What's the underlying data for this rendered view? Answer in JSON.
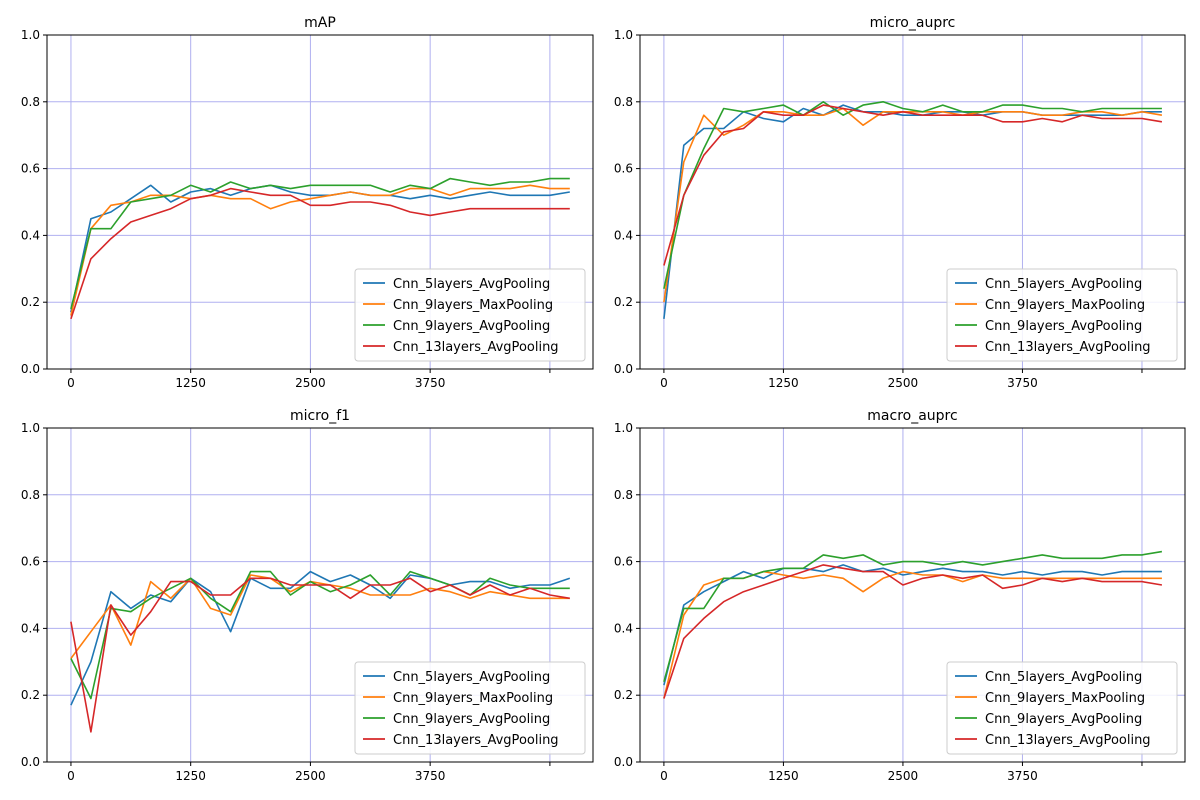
{
  "chart_data": [
    {
      "type": "line",
      "title": "mAP",
      "x": [
        0,
        208,
        417,
        625,
        833,
        1042,
        1250,
        1458,
        1667,
        1875,
        2083,
        2292,
        2500,
        2708,
        2917,
        3125,
        3333,
        3542,
        3750,
        3958,
        4167,
        4375,
        4583,
        4792,
        5000,
        5208
      ],
      "xticks": [
        0,
        1250,
        2500,
        3750,
        5000
      ],
      "xtick_labels": [
        "0",
        "1250",
        "2500",
        "3750",
        ""
      ],
      "xlim": [
        -250,
        5450
      ],
      "ylim": [
        0,
        1
      ],
      "yticks": [
        0,
        0.2,
        0.4,
        0.6,
        0.8,
        1.0
      ],
      "ytick_labels": [
        "0.0",
        "0.2",
        "0.4",
        "0.6",
        "0.8",
        "1.0"
      ],
      "grid": true,
      "legend": "lower-right",
      "series": [
        {
          "name": "Cnn_5layers_AvgPooling",
          "color": "#1f77b4",
          "values": [
            0.17,
            0.45,
            0.47,
            0.51,
            0.55,
            0.5,
            0.53,
            0.54,
            0.52,
            0.54,
            0.55,
            0.53,
            0.52,
            0.52,
            0.53,
            0.52,
            0.52,
            0.51,
            0.52,
            0.51,
            0.52,
            0.53,
            0.52,
            0.52,
            0.52,
            0.53
          ]
        },
        {
          "name": "Cnn_9layers_MaxPooling",
          "color": "#ff7f0e",
          "values": [
            0.16,
            0.42,
            0.49,
            0.5,
            0.52,
            0.52,
            0.51,
            0.52,
            0.51,
            0.51,
            0.48,
            0.5,
            0.51,
            0.52,
            0.53,
            0.52,
            0.52,
            0.54,
            0.54,
            0.52,
            0.54,
            0.54,
            0.54,
            0.55,
            0.54,
            0.54
          ]
        },
        {
          "name": "Cnn_9layers_AvgPooling",
          "color": "#2ca02c",
          "values": [
            0.18,
            0.42,
            0.42,
            0.5,
            0.51,
            0.52,
            0.55,
            0.53,
            0.56,
            0.54,
            0.55,
            0.54,
            0.55,
            0.55,
            0.55,
            0.55,
            0.53,
            0.55,
            0.54,
            0.57,
            0.56,
            0.55,
            0.56,
            0.56,
            0.57,
            0.57
          ]
        },
        {
          "name": "Cnn_13layers_AvgPooling",
          "color": "#d62728",
          "values": [
            0.15,
            0.33,
            0.39,
            0.44,
            0.46,
            0.48,
            0.51,
            0.52,
            0.54,
            0.53,
            0.52,
            0.52,
            0.49,
            0.49,
            0.5,
            0.5,
            0.49,
            0.47,
            0.46,
            0.47,
            0.48,
            0.48,
            0.48,
            0.48,
            0.48,
            0.48
          ]
        }
      ]
    },
    {
      "type": "line",
      "title": "micro_auprc",
      "x": [
        0,
        208,
        417,
        625,
        833,
        1042,
        1250,
        1458,
        1667,
        1875,
        2083,
        2292,
        2500,
        2708,
        2917,
        3125,
        3333,
        3542,
        3750,
        3958,
        4167,
        4375,
        4583,
        4792,
        5000,
        5208
      ],
      "xticks": [
        0,
        1250,
        2500,
        3750,
        5000
      ],
      "xtick_labels": [
        "0",
        "1250",
        "2500",
        "3750",
        ""
      ],
      "xlim": [
        -250,
        5450
      ],
      "ylim": [
        0,
        1
      ],
      "yticks": [
        0,
        0.2,
        0.4,
        0.6,
        0.8,
        1.0
      ],
      "ytick_labels": [
        "0.0",
        "0.2",
        "0.4",
        "0.6",
        "0.8",
        "1.0"
      ],
      "grid": true,
      "legend": "lower-right",
      "series": [
        {
          "name": "Cnn_5layers_AvgPooling",
          "color": "#1f77b4",
          "values": [
            0.15,
            0.67,
            0.72,
            0.72,
            0.77,
            0.75,
            0.74,
            0.78,
            0.76,
            0.79,
            0.77,
            0.77,
            0.76,
            0.76,
            0.77,
            0.77,
            0.76,
            0.77,
            0.77,
            0.76,
            0.76,
            0.76,
            0.76,
            0.76,
            0.77,
            0.77
          ]
        },
        {
          "name": "Cnn_9layers_MaxPooling",
          "color": "#ff7f0e",
          "values": [
            0.2,
            0.62,
            0.76,
            0.7,
            0.73,
            0.77,
            0.77,
            0.76,
            0.76,
            0.78,
            0.73,
            0.77,
            0.77,
            0.77,
            0.77,
            0.76,
            0.77,
            0.77,
            0.77,
            0.76,
            0.76,
            0.77,
            0.77,
            0.76,
            0.77,
            0.76
          ]
        },
        {
          "name": "Cnn_9layers_AvgPooling",
          "color": "#2ca02c",
          "values": [
            0.24,
            0.52,
            0.66,
            0.78,
            0.77,
            0.78,
            0.79,
            0.76,
            0.8,
            0.76,
            0.79,
            0.8,
            0.78,
            0.77,
            0.79,
            0.77,
            0.77,
            0.79,
            0.79,
            0.78,
            0.78,
            0.77,
            0.78,
            0.78,
            0.78,
            0.78
          ]
        },
        {
          "name": "Cnn_13layers_AvgPooling",
          "color": "#d62728",
          "values": [
            0.31,
            0.52,
            0.64,
            0.71,
            0.72,
            0.77,
            0.76,
            0.76,
            0.79,
            0.78,
            0.77,
            0.76,
            0.77,
            0.76,
            0.76,
            0.76,
            0.76,
            0.74,
            0.74,
            0.75,
            0.74,
            0.76,
            0.75,
            0.75,
            0.75,
            0.74
          ]
        }
      ]
    },
    {
      "type": "line",
      "title": "micro_f1",
      "x": [
        0,
        208,
        417,
        625,
        833,
        1042,
        1250,
        1458,
        1667,
        1875,
        2083,
        2292,
        2500,
        2708,
        2917,
        3125,
        3333,
        3542,
        3750,
        3958,
        4167,
        4375,
        4583,
        4792,
        5000,
        5208
      ],
      "xticks": [
        0,
        1250,
        2500,
        3750,
        5000
      ],
      "xtick_labels": [
        "0",
        "1250",
        "2500",
        "3750",
        ""
      ],
      "xlim": [
        -250,
        5450
      ],
      "ylim": [
        0,
        1
      ],
      "yticks": [
        0,
        0.2,
        0.4,
        0.6,
        0.8,
        1.0
      ],
      "ytick_labels": [
        "0.0",
        "0.2",
        "0.4",
        "0.6",
        "0.8",
        "1.0"
      ],
      "grid": true,
      "legend": "lower-right",
      "series": [
        {
          "name": "Cnn_5layers_AvgPooling",
          "color": "#1f77b4",
          "values": [
            0.17,
            0.3,
            0.51,
            0.46,
            0.5,
            0.48,
            0.55,
            0.51,
            0.39,
            0.55,
            0.52,
            0.52,
            0.57,
            0.54,
            0.56,
            0.53,
            0.49,
            0.56,
            0.55,
            0.53,
            0.54,
            0.54,
            0.52,
            0.53,
            0.53,
            0.55
          ]
        },
        {
          "name": "Cnn_9layers_MaxPooling",
          "color": "#ff7f0e",
          "values": [
            0.31,
            0.39,
            0.47,
            0.35,
            0.54,
            0.49,
            0.55,
            0.46,
            0.44,
            0.56,
            0.55,
            0.51,
            0.54,
            0.53,
            0.52,
            0.5,
            0.5,
            0.5,
            0.52,
            0.51,
            0.49,
            0.51,
            0.5,
            0.49,
            0.49,
            0.49
          ]
        },
        {
          "name": "Cnn_9layers_AvgPooling",
          "color": "#2ca02c",
          "values": [
            0.31,
            0.19,
            0.46,
            0.45,
            0.49,
            0.52,
            0.55,
            0.49,
            0.45,
            0.57,
            0.57,
            0.5,
            0.54,
            0.51,
            0.53,
            0.56,
            0.5,
            0.57,
            0.55,
            0.53,
            0.5,
            0.55,
            0.53,
            0.52,
            0.52,
            0.52
          ]
        },
        {
          "name": "Cnn_13layers_AvgPooling",
          "color": "#d62728",
          "values": [
            0.42,
            0.09,
            0.47,
            0.38,
            0.45,
            0.54,
            0.54,
            0.5,
            0.5,
            0.55,
            0.55,
            0.53,
            0.53,
            0.53,
            0.49,
            0.53,
            0.53,
            0.55,
            0.51,
            0.53,
            0.5,
            0.53,
            0.5,
            0.52,
            0.5,
            0.49
          ]
        }
      ]
    },
    {
      "type": "line",
      "title": "macro_auprc",
      "x": [
        0,
        208,
        417,
        625,
        833,
        1042,
        1250,
        1458,
        1667,
        1875,
        2083,
        2292,
        2500,
        2708,
        2917,
        3125,
        3333,
        3542,
        3750,
        3958,
        4167,
        4375,
        4583,
        4792,
        5000,
        5208
      ],
      "xticks": [
        0,
        1250,
        2500,
        3750,
        5000
      ],
      "xtick_labels": [
        "0",
        "1250",
        "2500",
        "3750",
        ""
      ],
      "xlim": [
        -250,
        5450
      ],
      "ylim": [
        0,
        1
      ],
      "yticks": [
        0,
        0.2,
        0.4,
        0.6,
        0.8,
        1.0
      ],
      "ytick_labels": [
        "0.0",
        "0.2",
        "0.4",
        "0.6",
        "0.8",
        "1.0"
      ],
      "grid": true,
      "legend": "lower-right",
      "series": [
        {
          "name": "Cnn_5layers_AvgPooling",
          "color": "#1f77b4",
          "values": [
            0.23,
            0.47,
            0.51,
            0.54,
            0.57,
            0.55,
            0.58,
            0.58,
            0.57,
            0.59,
            0.57,
            0.58,
            0.56,
            0.57,
            0.58,
            0.57,
            0.57,
            0.56,
            0.57,
            0.56,
            0.57,
            0.57,
            0.56,
            0.57,
            0.57,
            0.57
          ]
        },
        {
          "name": "Cnn_9layers_MaxPooling",
          "color": "#ff7f0e",
          "values": [
            0.19,
            0.44,
            0.53,
            0.55,
            0.55,
            0.57,
            0.56,
            0.55,
            0.56,
            0.55,
            0.51,
            0.55,
            0.57,
            0.56,
            0.56,
            0.54,
            0.56,
            0.55,
            0.55,
            0.55,
            0.55,
            0.55,
            0.55,
            0.55,
            0.55,
            0.55
          ]
        },
        {
          "name": "Cnn_9layers_AvgPooling",
          "color": "#2ca02c",
          "values": [
            0.24,
            0.46,
            0.46,
            0.55,
            0.55,
            0.57,
            0.58,
            0.58,
            0.62,
            0.61,
            0.62,
            0.59,
            0.6,
            0.6,
            0.59,
            0.6,
            0.59,
            0.6,
            0.61,
            0.62,
            0.61,
            0.61,
            0.61,
            0.62,
            0.62,
            0.63
          ]
        },
        {
          "name": "Cnn_13layers_AvgPooling",
          "color": "#d62728",
          "values": [
            0.19,
            0.37,
            0.43,
            0.48,
            0.51,
            0.53,
            0.55,
            0.57,
            0.59,
            0.58,
            0.57,
            0.57,
            0.53,
            0.55,
            0.56,
            0.55,
            0.56,
            0.52,
            0.53,
            0.55,
            0.54,
            0.55,
            0.54,
            0.54,
            0.54,
            0.53
          ]
        }
      ]
    }
  ]
}
